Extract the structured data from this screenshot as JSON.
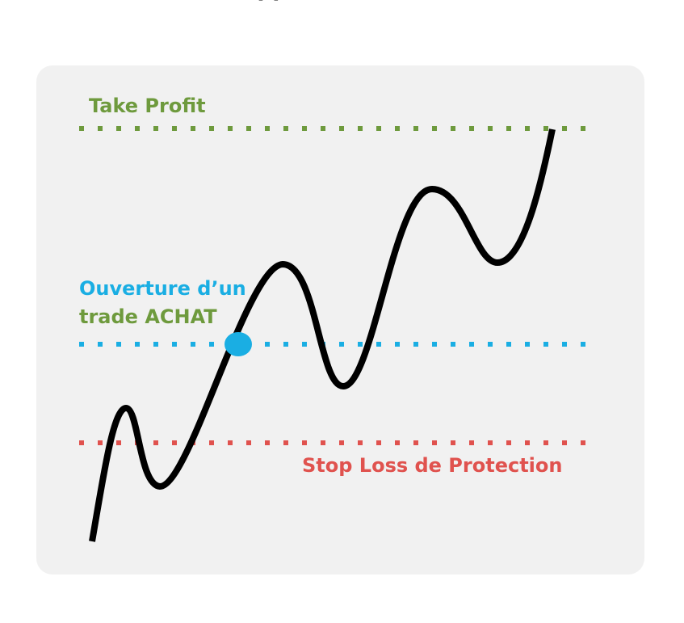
{
  "top_fragment": "· ·",
  "labels": {
    "take_profit": "Take Profit",
    "open_line1": "Ouverture d’un",
    "open_line2": "trade ACHAT",
    "stop_loss": "Stop Loss de Protection"
  },
  "colors": {
    "take_profit": "#6e9a3d",
    "open_trade": "#1aaee3",
    "stop_loss": "#e0524e",
    "price_line": "#000000",
    "panel": "#f1f1f1"
  }
}
